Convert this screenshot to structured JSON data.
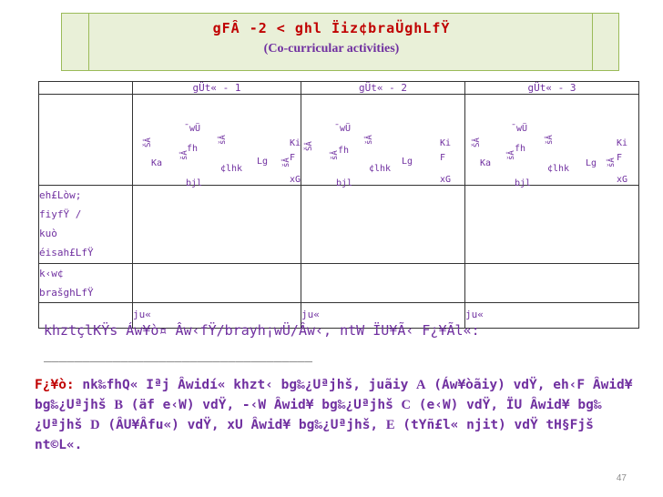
{
  "title": {
    "line1": "gFÂ -2 <  ghl Ïiz¢braÜghLfŸ",
    "line2": "(Co-curricular  activities)"
  },
  "terms": [
    "gÜt« - 1",
    "gÜt« - 2",
    "gÜt« - 3"
  ],
  "col_labels": [
    "ŠÂ",
    "Ka",
    "¯wÜ",
    "fh",
    "bjl",
    "šÂ",
    "¢lhk",
    "Lg",
    "Ki",
    "F",
    "xG"
  ],
  "rows": [
    {
      "label": "eh£Lòw;\nfiyfŸ /\nkuò\néisah£LfŸ"
    },
    {
      "label": "k‹w¢\nbrašghLfŸ"
    }
  ],
  "total_row": [
    "ju«",
    "ju«",
    "ju«"
  ],
  "note": "khztçlKŸs Áw¥ò¤ Âw‹fŸ/brayh¡wÜ/Âw‹, ntW ÏU¥Ã‹ F¿¥Ãl΢«:",
  "underline": "___________________________________",
  "footer": {
    "lead": "F¿¥ò:",
    "text1": "nk‰fhQ« Iªj Âwidí« khzt‹ bg‰¿Uªjhš, juãiy",
    "gA": "A",
    "text2": "(Áw¥òãiy) vdΫ,  eh‹F Âwid¥ bg‰¿Uªjhš",
    "gB": "B",
    "text3": "(äf e‹W) vdΫ, ‑‹W Âwid¥ bg‰¿Uªjhš",
    "gC": "C",
    "text4": "(e‹W) vdΫ, ÏU Âwid¥ bg‰¿Uªjhš",
    "gD": "D",
    "text5": "(ÂU¥Âfu«) vdΫ, xU Âwid¥ bg‰¿Uªjhš,",
    "gE": "E",
    "text6": "(tYñ£l« njit) vdΫ tH§Fjš nt©L«."
  },
  "page_number": "47"
}
